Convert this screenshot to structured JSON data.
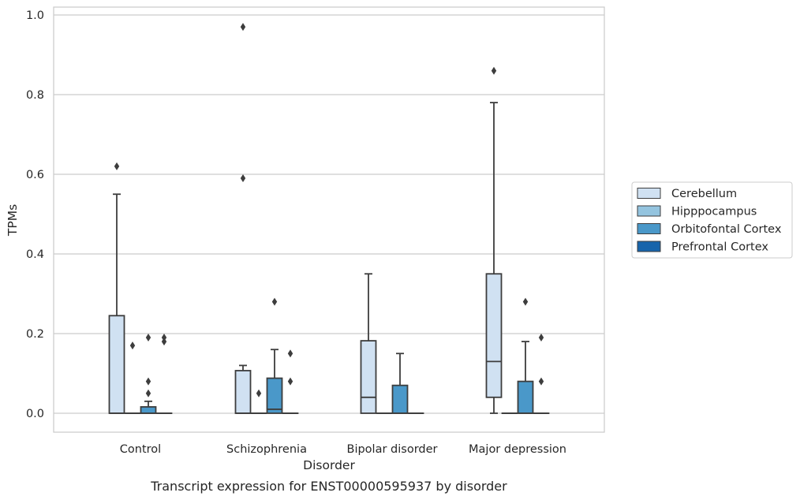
{
  "chart_data": {
    "type": "box",
    "caption": "Transcript expression for ENST00000595937 by disorder",
    "xlabel": "Disorder",
    "ylabel": "TPMs",
    "ylim": [
      -0.045,
      1.02
    ],
    "yticks": [
      "0.0",
      "0.2",
      "0.4",
      "0.6",
      "0.8",
      "1.0"
    ],
    "ytick_values": [
      0,
      0.2,
      0.4,
      0.6,
      0.8,
      1.0
    ],
    "grid": "horizontal",
    "legend_position": "right",
    "categories": [
      "Control",
      "Schizophrenia",
      "Bipolar disorder",
      "Major depression"
    ],
    "series": [
      {
        "name": "Cerebellum",
        "color": "#d0e1f2",
        "boxes": [
          {
            "min": 0,
            "q1": 0,
            "median": 0,
            "q3": 0.245,
            "max": 0.55,
            "outliers": [
              0.62
            ]
          },
          {
            "min": 0,
            "q1": 0,
            "median": 0,
            "q3": 0.107,
            "max": 0.12,
            "outliers": [
              0.59,
              0.97
            ]
          },
          {
            "min": 0,
            "q1": 0,
            "median": 0.04,
            "q3": 0.182,
            "max": 0.35,
            "outliers": []
          },
          {
            "min": 0,
            "q1": 0.04,
            "median": 0.13,
            "q3": 0.35,
            "max": 0.78,
            "outliers": [
              0.86
            ]
          }
        ]
      },
      {
        "name": "Hipppocampus",
        "color": "#94c4df",
        "boxes": [
          {
            "min": 0,
            "q1": 0,
            "median": 0,
            "q3": 0,
            "max": 0,
            "outliers": [
              0.17
            ]
          },
          {
            "min": 0,
            "q1": 0,
            "median": 0,
            "q3": 0,
            "max": 0,
            "outliers": [
              0.05
            ]
          },
          {
            "min": 0,
            "q1": 0,
            "median": 0,
            "q3": 0,
            "max": 0,
            "outliers": []
          },
          {
            "min": 0,
            "q1": 0,
            "median": 0,
            "q3": 0,
            "max": 0,
            "outliers": []
          }
        ]
      },
      {
        "name": "Orbitofontal Cortex",
        "color": "#4a98c9",
        "boxes": [
          {
            "min": 0,
            "q1": 0,
            "median": 0,
            "q3": 0.016,
            "max": 0.03,
            "outliers": [
              0.05,
              0.08,
              0.19
            ]
          },
          {
            "min": 0,
            "q1": 0,
            "median": 0.01,
            "q3": 0.088,
            "max": 0.16,
            "outliers": [
              0.28
            ]
          },
          {
            "min": 0,
            "q1": 0,
            "median": 0,
            "q3": 0.07,
            "max": 0.15,
            "outliers": []
          },
          {
            "min": 0,
            "q1": 0,
            "median": 0,
            "q3": 0.08,
            "max": 0.18,
            "outliers": [
              0.28
            ]
          }
        ]
      },
      {
        "name": "Prefrontal Cortex",
        "color": "#1764ab",
        "boxes": [
          {
            "min": 0,
            "q1": 0,
            "median": 0,
            "q3": 0,
            "max": 0,
            "outliers": [
              0.18,
              0.19
            ]
          },
          {
            "min": 0,
            "q1": 0,
            "median": 0,
            "q3": 0,
            "max": 0,
            "outliers": [
              0.08,
              0.15
            ]
          },
          {
            "min": 0,
            "q1": 0,
            "median": 0,
            "q3": 0,
            "max": 0,
            "outliers": []
          },
          {
            "min": 0,
            "q1": 0,
            "median": 0,
            "q3": 0,
            "max": 0,
            "outliers": [
              0.08,
              0.19
            ]
          }
        ]
      }
    ]
  }
}
